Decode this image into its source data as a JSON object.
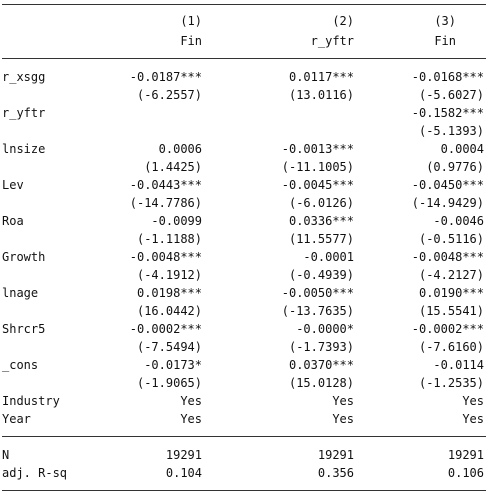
{
  "header": {
    "col_numbers": [
      "(1)",
      "(2)",
      "(3)"
    ],
    "dep_vars": [
      "Fin",
      "r_yftr",
      "Fin"
    ]
  },
  "rows": [
    {
      "label": "r_xsgg",
      "c": [
        "-0.0187***",
        "0.0117***",
        "-0.0168***"
      ]
    },
    {
      "label": "",
      "c": [
        "(-6.2557)",
        "(13.0116)",
        "(-5.6027)"
      ]
    },
    {
      "label": "r_yftr",
      "c": [
        "",
        "",
        "-0.1582***"
      ]
    },
    {
      "label": "",
      "c": [
        "",
        "",
        "(-5.1393)"
      ]
    },
    {
      "label": "lnsize",
      "c": [
        "0.0006",
        "-0.0013***",
        "0.0004"
      ]
    },
    {
      "label": "",
      "c": [
        "(1.4425)",
        "(-11.1005)",
        "(0.9776)"
      ]
    },
    {
      "label": "Lev",
      "c": [
        "-0.0443***",
        "-0.0045***",
        "-0.0450***"
      ]
    },
    {
      "label": "",
      "c": [
        "(-14.7786)",
        "(-6.0126)",
        "(-14.9429)"
      ]
    },
    {
      "label": "Roa",
      "c": [
        "-0.0099",
        "0.0336***",
        "-0.0046"
      ]
    },
    {
      "label": "",
      "c": [
        "(-1.1188)",
        "(11.5577)",
        "(-0.5116)"
      ]
    },
    {
      "label": "Growth",
      "c": [
        "-0.0048***",
        "-0.0001",
        "-0.0048***"
      ]
    },
    {
      "label": "",
      "c": [
        "(-4.1912)",
        "(-0.4939)",
        "(-4.2127)"
      ]
    },
    {
      "label": "lnage",
      "c": [
        "0.0198***",
        "-0.0050***",
        "0.0190***"
      ]
    },
    {
      "label": "",
      "c": [
        "(16.0442)",
        "(-13.7635)",
        "(15.5541)"
      ]
    },
    {
      "label": "Shrcr5",
      "c": [
        "-0.0002***",
        "-0.0000*",
        "-0.0002***"
      ]
    },
    {
      "label": "",
      "c": [
        "(-7.5494)",
        "(-1.7393)",
        "(-7.6160)"
      ]
    },
    {
      "label": "_cons",
      "c": [
        "-0.0173*",
        "0.0370***",
        "-0.0114"
      ]
    },
    {
      "label": "",
      "c": [
        "(-1.9065)",
        "(15.0128)",
        "(-1.2535)"
      ]
    },
    {
      "label": "Industry",
      "c": [
        "Yes",
        "Yes",
        "Yes"
      ]
    },
    {
      "label": "Year",
      "c": [
        "Yes",
        "Yes",
        "Yes"
      ]
    }
  ],
  "footer": [
    {
      "label": "N",
      "c": [
        "19291",
        "19291",
        "19291"
      ]
    },
    {
      "label": "adj. R-sq",
      "c": [
        "0.104",
        "0.356",
        "0.106"
      ]
    }
  ]
}
